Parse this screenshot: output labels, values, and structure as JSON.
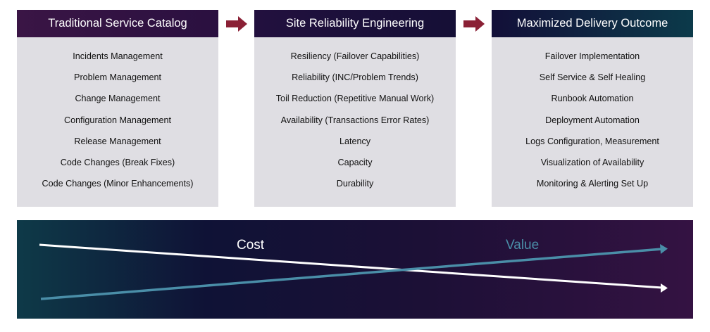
{
  "columns": [
    {
      "title": "Traditional Service Catalog",
      "items": [
        "Incidents Management",
        "Problem Management",
        "Change Management",
        "Configuration Management",
        "Release Management",
        "Code Changes (Break Fixes)",
        "Code Changes (Minor Enhancements)"
      ]
    },
    {
      "title": "Site Reliability Engineering",
      "items": [
        "Resiliency (Failover Capabilities)",
        "Reliability (INC/Problem Trends)",
        "Toil Reduction (Repetitive Manual Work)",
        "Availability (Transactions Error Rates)",
        "Latency",
        "Capacity",
        "Durability"
      ]
    },
    {
      "title": "Maximized Delivery Outcome",
      "items": [
        "Failover Implementation",
        "Self Service & Self Healing",
        "Runbook Automation",
        "Deployment Automation",
        "Logs Configuration, Measurement",
        "Visualization of Availability",
        "Monitoring & Alerting Set Up"
      ]
    }
  ],
  "trend": {
    "cost_label": "Cost",
    "value_label": "Value",
    "cost_direction": "decreasing",
    "value_direction": "increasing"
  },
  "colors": {
    "arrow": "#8a2035",
    "cost_line": "#ffffff",
    "value_line": "#4a8ea8",
    "body": "#dfdee3"
  }
}
